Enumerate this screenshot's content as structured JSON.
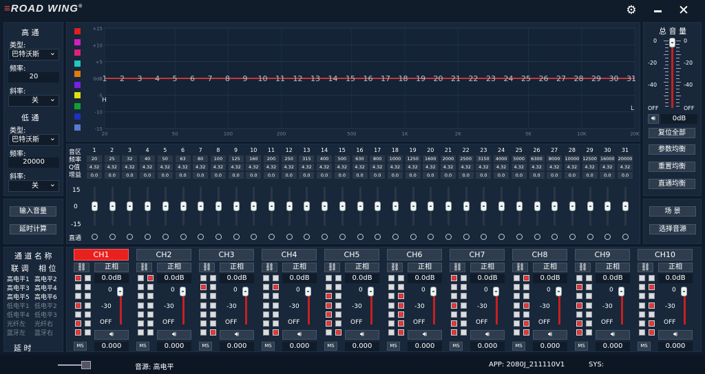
{
  "app": {
    "logo": "ROAD WING",
    "logo_mark": "®"
  },
  "window": {
    "settings_icon": "gear-icon",
    "minimize_icon": "minimize-icon",
    "close_icon": "close-icon"
  },
  "highpass": {
    "title": "高  通",
    "type_label": "类型:",
    "type": "巴特沃斯",
    "freq_label": "频率:",
    "freq": "20",
    "slope_label": "斜率:",
    "slope": "关"
  },
  "lowpass": {
    "title": "低  通",
    "type_label": "类型:",
    "type": "巴特沃斯",
    "freq_label": "频率:",
    "freq": "20000",
    "slope_label": "斜率:",
    "slope": "关"
  },
  "left_buttons": {
    "input_volume": "输入音量",
    "delay_calc": "延时计算"
  },
  "graph": {
    "y_ticks": [
      "+15",
      "+10",
      "+5",
      "0dB",
      "-5",
      "-10",
      "-15"
    ],
    "x_ticks": [
      "20",
      "50",
      "100",
      "200",
      "500",
      "1K",
      "2K",
      "5K",
      "10K",
      "20K"
    ],
    "marker_h": "H",
    "marker_l": "L",
    "color_swatches": [
      "#e02020",
      "#d020c0",
      "#e0207a",
      "#20c8c0",
      "#e07a10",
      "#7a20e0",
      "#e0e010",
      "#10a030",
      "#2030c0",
      "#5a7ad0"
    ]
  },
  "eq_table": {
    "row_labels": [
      "音区",
      "频率",
      "Q值",
      "增益"
    ],
    "bands": [
      "1",
      "2",
      "3",
      "4",
      "5",
      "6",
      "7",
      "8",
      "9",
      "10",
      "11",
      "12",
      "13",
      "14",
      "15",
      "16",
      "17",
      "18",
      "19",
      "20",
      "21",
      "22",
      "23",
      "24",
      "25",
      "26",
      "27",
      "28",
      "29",
      "30",
      "31"
    ],
    "freqs": [
      "20",
      "25",
      "32",
      "40",
      "50",
      "63",
      "80",
      "100",
      "125",
      "160",
      "200",
      "250",
      "315",
      "400",
      "500",
      "630",
      "800",
      "1000",
      "1250",
      "1600",
      "2000",
      "2500",
      "3150",
      "4000",
      "5000",
      "6300",
      "8000",
      "10000",
      "12500",
      "16000",
      "20000"
    ],
    "q": "4.32",
    "gain": "0.0",
    "slider_scale": [
      "15",
      "0",
      "-15"
    ],
    "bypass_label": "直通"
  },
  "master": {
    "title": "总 音 量",
    "scale": [
      "0",
      "-20",
      "-40"
    ],
    "scale_right": [
      "0",
      "-20",
      "-40"
    ],
    "off_left": "OFF",
    "off_right": "OFF",
    "value": "0dB",
    "speaker_icon": "speaker-icon"
  },
  "right_buttons": {
    "reset_all": "复位全部",
    "param_eq": "参数均衡",
    "reset_eq": "重置均衡",
    "bypass_eq": "直通均衡",
    "scene": "场  景",
    "select_source": "选择音源"
  },
  "routing": {
    "title": "通 道 名 称",
    "link": "联 调",
    "phase": "相 位",
    "inputs_left": [
      "高电平1",
      "高电平3",
      "高电平5",
      "低电平1",
      "低电平4",
      "光纤左",
      "蓝牙左"
    ],
    "inputs_right": [
      "高电平2",
      "高电平4",
      "高电平6",
      "低电平2",
      "低电平3",
      "光纤右",
      "蓝牙右"
    ],
    "delay": "延     时"
  },
  "channels": [
    {
      "name": "CH1",
      "active": true,
      "phase": "正相",
      "gain": "0.0dB",
      "vol_top": "0",
      "vol_mid": "-30",
      "vol_off": "OFF",
      "ms": "MS",
      "delay": "0.000",
      "checks": [
        [
          1,
          0
        ],
        [
          0,
          0
        ],
        [
          0,
          0
        ],
        [
          1,
          0
        ],
        [
          0,
          0
        ],
        [
          1,
          0
        ],
        [
          1,
          0
        ]
      ]
    },
    {
      "name": "CH2",
      "active": false,
      "phase": "正相",
      "gain": "0.0dB",
      "vol_top": "0",
      "vol_mid": "-30",
      "vol_off": "OFF",
      "ms": "MS",
      "delay": "0.000",
      "checks": [
        [
          0,
          1
        ],
        [
          0,
          0
        ],
        [
          0,
          0
        ],
        [
          0,
          0
        ],
        [
          0,
          0
        ],
        [
          0,
          0
        ],
        [
          0,
          0
        ]
      ]
    },
    {
      "name": "CH3",
      "active": false,
      "phase": "正相",
      "gain": "0.0dB",
      "vol_top": "0",
      "vol_mid": "-30",
      "vol_off": "OFF",
      "ms": "MS",
      "delay": "0.000",
      "checks": [
        [
          0,
          0
        ],
        [
          1,
          0
        ],
        [
          0,
          0
        ],
        [
          0,
          0
        ],
        [
          0,
          0
        ],
        [
          0,
          0
        ],
        [
          0,
          1
        ]
      ]
    },
    {
      "name": "CH4",
      "active": false,
      "phase": "正相",
      "gain": "0.0dB",
      "vol_top": "0",
      "vol_mid": "-30",
      "vol_off": "OFF",
      "ms": "MS",
      "delay": "0.000",
      "checks": [
        [
          0,
          0
        ],
        [
          0,
          1
        ],
        [
          0,
          0
        ],
        [
          0,
          0
        ],
        [
          0,
          0
        ],
        [
          0,
          0
        ],
        [
          0,
          1
        ]
      ]
    },
    {
      "name": "CH5",
      "active": false,
      "phase": "正相",
      "gain": "0.0dB",
      "vol_top": "0",
      "vol_mid": "-30",
      "vol_off": "OFF",
      "ms": "MS",
      "delay": "0.000",
      "checks": [
        [
          0,
          0
        ],
        [
          0,
          0
        ],
        [
          1,
          0
        ],
        [
          1,
          0
        ],
        [
          1,
          0
        ],
        [
          1,
          0
        ],
        [
          0,
          1
        ]
      ]
    },
    {
      "name": "CH6",
      "active": false,
      "phase": "正相",
      "gain": "0.0dB",
      "vol_top": "0",
      "vol_mid": "-30",
      "vol_off": "OFF",
      "ms": "MS",
      "delay": "0.000",
      "checks": [
        [
          0,
          0
        ],
        [
          0,
          0
        ],
        [
          0,
          1
        ],
        [
          0,
          1
        ],
        [
          0,
          1
        ],
        [
          0,
          1
        ],
        [
          0,
          1
        ]
      ]
    },
    {
      "name": "CH7",
      "active": false,
      "phase": "正相",
      "gain": "0.0dB",
      "vol_top": "0",
      "vol_mid": "-30",
      "vol_off": "OFF",
      "ms": "MS",
      "delay": "0.000",
      "checks": [
        [
          1,
          0
        ],
        [
          0,
          0
        ],
        [
          0,
          0
        ],
        [
          1,
          0
        ],
        [
          0,
          0
        ],
        [
          1,
          0
        ],
        [
          1,
          0
        ]
      ]
    },
    {
      "name": "CH8",
      "active": false,
      "phase": "正相",
      "gain": "0.0dB",
      "vol_top": "0",
      "vol_mid": "-30",
      "vol_off": "OFF",
      "ms": "MS",
      "delay": "0.000",
      "checks": [
        [
          0,
          1
        ],
        [
          0,
          0
        ],
        [
          0,
          0
        ],
        [
          0,
          1
        ],
        [
          0,
          0
        ],
        [
          0,
          1
        ],
        [
          0,
          1
        ]
      ]
    },
    {
      "name": "CH9",
      "active": false,
      "phase": "正相",
      "gain": "0.0dB",
      "vol_top": "0",
      "vol_mid": "-30",
      "vol_off": "OFF",
      "ms": "MS",
      "delay": "0.000",
      "checks": [
        [
          0,
          0
        ],
        [
          1,
          0
        ],
        [
          0,
          0
        ],
        [
          1,
          0
        ],
        [
          0,
          0
        ],
        [
          1,
          0
        ],
        [
          1,
          0
        ]
      ]
    },
    {
      "name": "CH10",
      "active": false,
      "phase": "正相",
      "gain": "0.0dB",
      "vol_top": "0",
      "vol_mid": "-30",
      "vol_off": "OFF",
      "ms": "MS",
      "delay": "0.000",
      "checks": [
        [
          0,
          0
        ],
        [
          0,
          1
        ],
        [
          0,
          0
        ],
        [
          0,
          1
        ],
        [
          0,
          0
        ],
        [
          0,
          1
        ],
        [
          0,
          1
        ]
      ]
    }
  ],
  "status": {
    "usb_icon": "usb-icon",
    "source": "音源: 高电平",
    "app": "APP: 2080J_211110V1",
    "sys": "SYS:"
  },
  "colors": {
    "bg": "#0f1b2b",
    "panel": "#18273a",
    "accent": "#e8201e",
    "curve": "#c83838"
  }
}
